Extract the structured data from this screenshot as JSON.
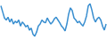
{
  "chart_data": {
    "type": "line",
    "color": "#3a8fd0",
    "tick_labels": false,
    "grid": false,
    "x": [
      0,
      1,
      2,
      3,
      4,
      5,
      6,
      7,
      8,
      9,
      10,
      11,
      12,
      13,
      14,
      15,
      16,
      17,
      18,
      19,
      20,
      21,
      22,
      23,
      24,
      25,
      26,
      27,
      28,
      29,
      30,
      31,
      32,
      33,
      34,
      35,
      36,
      37,
      38,
      39,
      40,
      41,
      42,
      43,
      44,
      45,
      46,
      47,
      48,
      49,
      50,
      51,
      52,
      53,
      54,
      55,
      56,
      57,
      58,
      59
    ],
    "values": [
      90,
      75,
      60,
      55,
      62,
      50,
      58,
      45,
      52,
      48,
      55,
      40,
      50,
      45,
      38,
      42,
      30,
      35,
      20,
      15,
      25,
      40,
      45,
      55,
      50,
      48,
      60,
      52,
      45,
      50,
      58,
      62,
      55,
      48,
      40,
      35,
      28,
      45,
      70,
      85,
      78,
      60,
      55,
      48,
      52,
      45,
      40,
      50,
      65,
      90,
      95,
      80,
      60,
      50,
      58,
      62,
      55,
      40,
      30,
      45
    ],
    "xlim": [
      0,
      59
    ],
    "ylim": [
      10,
      100
    ]
  }
}
